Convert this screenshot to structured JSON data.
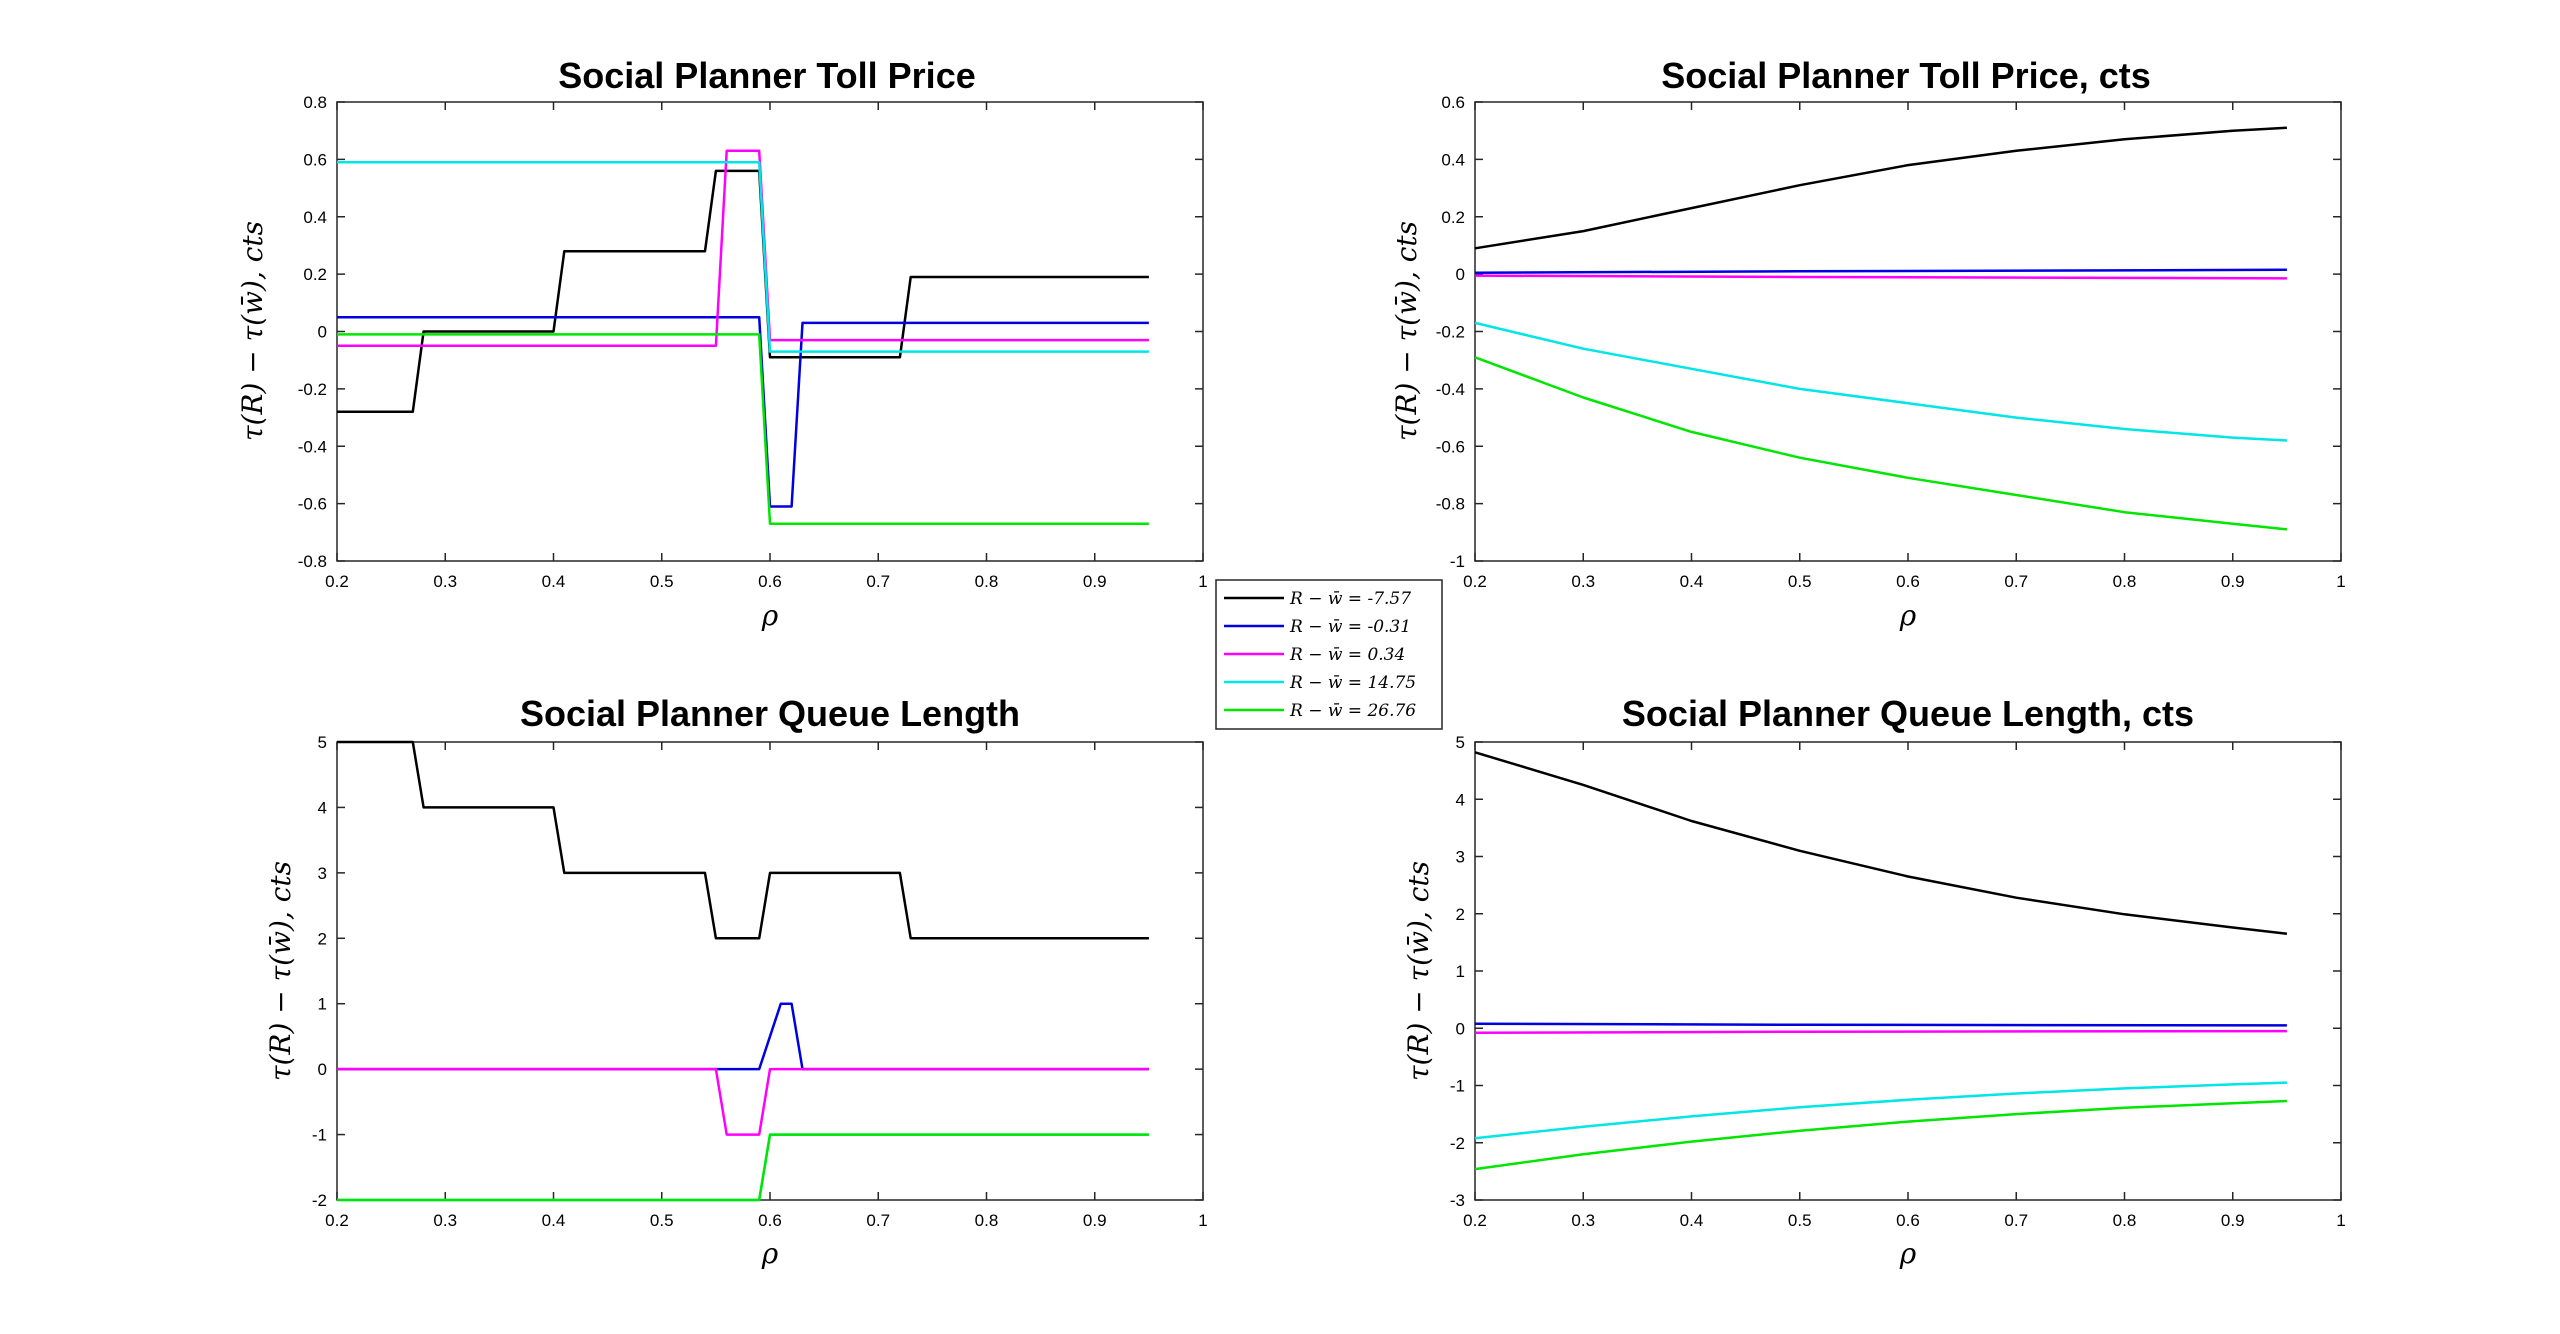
{
  "legend": {
    "entries": [
      {
        "label": "R − w̄ = -7.57",
        "color": "#000000"
      },
      {
        "label": "R − w̄ = -0.31",
        "color": "#0000e0"
      },
      {
        "label": "R − w̄ = 0.34",
        "color": "#ff00ff"
      },
      {
        "label": "R − w̄ = 14.75",
        "color": "#00e6e6"
      },
      {
        "label": "R − w̄ = 26.76",
        "color": "#00e600"
      }
    ]
  },
  "chart_data": [
    {
      "type": "line",
      "title": "Social Planner Toll Price",
      "xlabel": "ρ",
      "ylabel": "τ(R) − τ(w̄), cts",
      "xlim": [
        0.2,
        1
      ],
      "ylim": [
        -0.8,
        0.8
      ],
      "xticks": [
        "0.2",
        "0.3",
        "0.4",
        "0.5",
        "0.6",
        "0.7",
        "0.8",
        "0.9",
        "1"
      ],
      "yticks": [
        "0.8",
        "0.6",
        "0.4",
        "0.2",
        "0",
        "-0.2",
        "-0.4",
        "-0.6",
        "-0.8"
      ],
      "series": [
        {
          "name": "R − w̄ = -7.57",
          "color": "#000000",
          "x": [
            0.2,
            0.27,
            0.28,
            0.4,
            0.41,
            0.54,
            0.55,
            0.59,
            0.6,
            0.62,
            0.63,
            0.72,
            0.73,
            0.95
          ],
          "y": [
            -0.28,
            -0.28,
            0,
            0,
            0.28,
            0.28,
            0.56,
            0.56,
            -0.09,
            -0.09,
            -0.09,
            -0.09,
            0.19,
            0.19
          ]
        },
        {
          "name": "R − w̄ = -0.31",
          "color": "#0000e0",
          "x": [
            0.2,
            0.59,
            0.6,
            0.61,
            0.62,
            0.63,
            0.95
          ],
          "y": [
            0.05,
            0.05,
            -0.61,
            -0.61,
            -0.61,
            0.03,
            0.03
          ]
        },
        {
          "name": "R − w̄ = 0.34",
          "color": "#ff00ff",
          "x": [
            0.2,
            0.55,
            0.56,
            0.58,
            0.59,
            0.6,
            0.95
          ],
          "y": [
            -0.05,
            -0.05,
            0.63,
            0.63,
            0.63,
            -0.03,
            -0.03
          ]
        },
        {
          "name": "R − w̄ = 14.75",
          "color": "#00e6e6",
          "x": [
            0.2,
            0.59,
            0.6,
            0.95
          ],
          "y": [
            0.59,
            0.59,
            -0.07,
            -0.07
          ]
        },
        {
          "name": "R − w̄ = 26.76",
          "color": "#00e600",
          "x": [
            0.2,
            0.59,
            0.6,
            0.95
          ],
          "y": [
            -0.01,
            -0.01,
            -0.67,
            -0.67
          ]
        }
      ]
    },
    {
      "type": "line",
      "title": "Social Planner Toll Price, cts",
      "xlabel": "ρ",
      "ylabel": "τ(R) − τ(w̄), cts",
      "xlim": [
        0.2,
        1
      ],
      "ylim": [
        -1,
        0.6
      ],
      "xticks": [
        "0.2",
        "0.3",
        "0.4",
        "0.5",
        "0.6",
        "0.7",
        "0.8",
        "0.9",
        "1"
      ],
      "yticks": [
        "0.6",
        "0.4",
        "0.2",
        "0",
        "-0.2",
        "-0.4",
        "-0.6",
        "-0.8",
        "-1"
      ],
      "series": [
        {
          "name": "R − w̄ = -7.57",
          "color": "#000000",
          "x": [
            0.2,
            0.3,
            0.4,
            0.5,
            0.6,
            0.7,
            0.8,
            0.9,
            0.95
          ],
          "y": [
            0.09,
            0.15,
            0.23,
            0.31,
            0.38,
            0.43,
            0.47,
            0.5,
            0.51
          ]
        },
        {
          "name": "R − w̄ = -0.31",
          "color": "#0000e0",
          "x": [
            0.2,
            0.5,
            0.95
          ],
          "y": [
            0.005,
            0.01,
            0.015
          ]
        },
        {
          "name": "R − w̄ = 0.34",
          "color": "#ff00ff",
          "x": [
            0.2,
            0.5,
            0.95
          ],
          "y": [
            -0.005,
            -0.01,
            -0.015
          ]
        },
        {
          "name": "R − w̄ = 14.75",
          "color": "#00e6e6",
          "x": [
            0.2,
            0.3,
            0.4,
            0.5,
            0.6,
            0.7,
            0.8,
            0.9,
            0.95
          ],
          "y": [
            -0.17,
            -0.26,
            -0.33,
            -0.4,
            -0.45,
            -0.5,
            -0.54,
            -0.57,
            -0.58
          ]
        },
        {
          "name": "R − w̄ = 26.76",
          "color": "#00e600",
          "x": [
            0.2,
            0.3,
            0.4,
            0.5,
            0.6,
            0.7,
            0.8,
            0.9,
            0.95
          ],
          "y": [
            -0.29,
            -0.43,
            -0.55,
            -0.64,
            -0.71,
            -0.77,
            -0.83,
            -0.87,
            -0.89
          ]
        }
      ]
    },
    {
      "type": "line",
      "title": "Social Planner Queue Length",
      "xlabel": "ρ",
      "ylabel": "τ(R) − τ(w̄), cts",
      "xlim": [
        0.2,
        1
      ],
      "ylim": [
        -2,
        5
      ],
      "xticks": [
        "0.2",
        "0.3",
        "0.4",
        "0.5",
        "0.6",
        "0.7",
        "0.8",
        "0.9",
        "1"
      ],
      "yticks": [
        "5",
        "4",
        "3",
        "2",
        "1",
        "0",
        "-1",
        "-2"
      ],
      "series": [
        {
          "name": "R − w̄ = -7.57",
          "color": "#000000",
          "x": [
            0.2,
            0.27,
            0.28,
            0.4,
            0.41,
            0.54,
            0.55,
            0.59,
            0.6,
            0.72,
            0.73,
            0.95
          ],
          "y": [
            5,
            5,
            4,
            4,
            3,
            3,
            2,
            2,
            3,
            3,
            2,
            2
          ]
        },
        {
          "name": "R − w̄ = -0.31",
          "color": "#0000e0",
          "x": [
            0.2,
            0.59,
            0.61,
            0.62,
            0.63,
            0.95
          ],
          "y": [
            0,
            0,
            1,
            1,
            0,
            0
          ]
        },
        {
          "name": "R − w̄ = 0.34",
          "color": "#ff00ff",
          "x": [
            0.2,
            0.55,
            0.56,
            0.59,
            0.6,
            0.95
          ],
          "y": [
            0,
            0,
            -1,
            -1,
            0,
            0
          ]
        },
        {
          "name": "R − w̄ = 14.75",
          "color": "#00e6e6",
          "x": [
            0.2,
            0.59,
            0.6,
            0.95
          ],
          "y": [
            -2,
            -2,
            -1,
            -1
          ]
        },
        {
          "name": "R − w̄ = 26.76",
          "color": "#00e600",
          "x": [
            0.2,
            0.59,
            0.6,
            0.95
          ],
          "y": [
            -2,
            -2,
            -1,
            -1
          ]
        }
      ]
    },
    {
      "type": "line",
      "title": "Social Planner Queue Length, cts",
      "xlabel": "ρ",
      "ylabel": "τ(R) − τ(w̄), cts",
      "xlim": [
        0.2,
        1
      ],
      "ylim": [
        -3,
        5
      ],
      "xticks": [
        "0.2",
        "0.3",
        "0.4",
        "0.5",
        "0.6",
        "0.7",
        "0.8",
        "0.9",
        "1"
      ],
      "yticks": [
        "5",
        "4",
        "3",
        "2",
        "1",
        "0",
        "-1",
        "-2",
        "-3"
      ],
      "series": [
        {
          "name": "R − w̄ = -7.57",
          "color": "#000000",
          "x": [
            0.2,
            0.3,
            0.4,
            0.5,
            0.6,
            0.7,
            0.8,
            0.9,
            0.95
          ],
          "y": [
            4.82,
            4.25,
            3.62,
            3.1,
            2.65,
            2.28,
            1.99,
            1.76,
            1.65
          ]
        },
        {
          "name": "R − w̄ = -0.31",
          "color": "#0000e0",
          "x": [
            0.2,
            0.5,
            0.95
          ],
          "y": [
            0.08,
            0.06,
            0.05
          ]
        },
        {
          "name": "R − w̄ = 0.34",
          "color": "#ff00ff",
          "x": [
            0.2,
            0.5,
            0.95
          ],
          "y": [
            -0.08,
            -0.06,
            -0.05
          ]
        },
        {
          "name": "R − w̄ = 14.75",
          "color": "#00e6e6",
          "x": [
            0.2,
            0.3,
            0.4,
            0.5,
            0.6,
            0.7,
            0.8,
            0.9,
            0.95
          ],
          "y": [
            -1.92,
            -1.72,
            -1.54,
            -1.38,
            -1.25,
            -1.14,
            -1.05,
            -0.98,
            -0.95
          ]
        },
        {
          "name": "R − w̄ = 26.76",
          "color": "#00e600",
          "x": [
            0.2,
            0.3,
            0.4,
            0.5,
            0.6,
            0.7,
            0.8,
            0.9,
            0.95
          ],
          "y": [
            -2.46,
            -2.2,
            -1.98,
            -1.79,
            -1.63,
            -1.5,
            -1.39,
            -1.31,
            -1.27
          ]
        }
      ]
    }
  ]
}
